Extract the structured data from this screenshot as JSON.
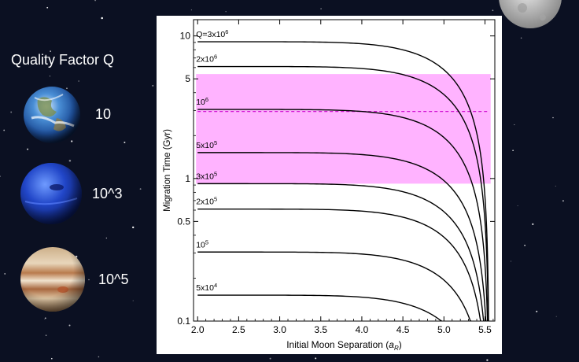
{
  "sidebar": {
    "title": "Quality Factor Q",
    "planets": [
      {
        "name": "earth-icon",
        "label": "10"
      },
      {
        "name": "neptune-icon",
        "label": "10^3"
      },
      {
        "name": "jupiter-icon",
        "label": "10^5"
      }
    ]
  },
  "colors": {
    "background": "#0b1022",
    "band": "#ffb3ff",
    "dashed": "#cc00cc",
    "curve": "#000000"
  },
  "chart_data": {
    "type": "line",
    "title": "",
    "xlabel": "Initial Moon Separation (a_R)",
    "ylabel": "Migration Time (Gyr)",
    "xlim": [
      1.95,
      5.62
    ],
    "ylim": [
      0.1,
      13
    ],
    "yscale": "log",
    "grid": false,
    "x_ticks": [
      2.0,
      2.5,
      3.0,
      3.5,
      4.0,
      4.5,
      5.0,
      5.5
    ],
    "x_tick_labels": [
      "2.0",
      "2.5",
      "3.0",
      "3.5",
      "4.0",
      "4.5",
      "5.0",
      "5.5"
    ],
    "y_ticks": [
      0.1,
      0.5,
      1,
      5,
      10
    ],
    "y_tick_labels": [
      "0.1",
      "0.5",
      "1",
      "5",
      "10"
    ],
    "band": {
      "y_low": 0.92,
      "y_high": 5.4
    },
    "dashed_line": {
      "y": 2.95
    },
    "asymptote_x": 5.55,
    "series": [
      {
        "label": "Q=3x10^6",
        "label_base": "Q=3x10",
        "label_exp": "6",
        "y0": 9.1
      },
      {
        "label": "2x10^6",
        "label_base": "2x10",
        "label_exp": "6",
        "y0": 6.1
      },
      {
        "label": "10^6",
        "label_base": "10",
        "label_exp": "6",
        "y0": 3.05
      },
      {
        "label": "5x10^5",
        "label_base": "5x10",
        "label_exp": "5",
        "y0": 1.52
      },
      {
        "label": "3x10^5",
        "label_base": "3x10",
        "label_exp": "5",
        "y0": 0.92
      },
      {
        "label": "2x10^5",
        "label_base": "2x10",
        "label_exp": "5",
        "y0": 0.61
      },
      {
        "label": "10^5",
        "label_base": "10",
        "label_exp": "5",
        "y0": 0.305
      },
      {
        "label": "5x10^4",
        "label_base": "5x10",
        "label_exp": "4",
        "y0": 0.152
      }
    ]
  }
}
